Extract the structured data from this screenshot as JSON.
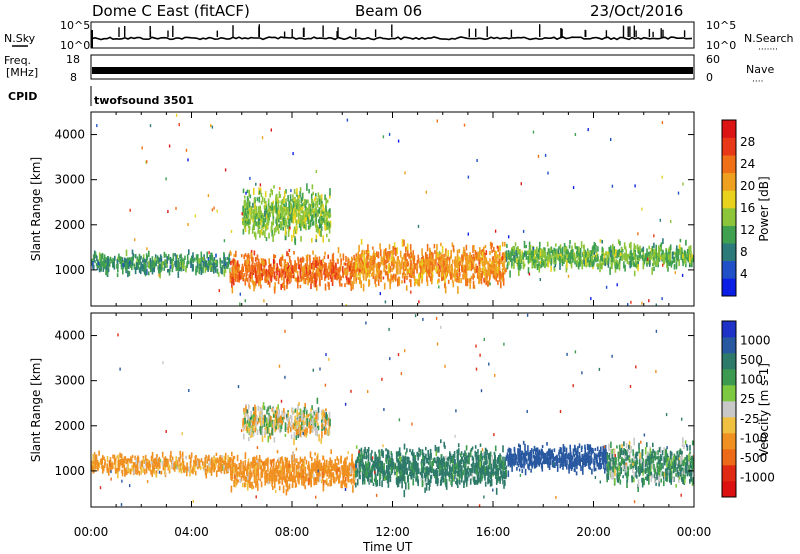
{
  "header": {
    "title": "Dome C East (fitACF)",
    "beam": "Beam 06",
    "date": "23/Oct/2016"
  },
  "strips": {
    "nsky_label": "N.Sky",
    "nsky_ticks": [
      "10^5",
      "10^0"
    ],
    "nsearch_label": "N.Search",
    "nsearch_dots": "·······",
    "nsearch_ticks": [
      "10^5",
      "10^0"
    ],
    "freq_label": "Freq.",
    "freq_unit": "[MHz]",
    "freq_ticks": [
      "18",
      "8"
    ],
    "nave_label": "Nave",
    "nave_dots": "····",
    "nave_ticks": [
      "60",
      "0"
    ],
    "cpid_label": "CPID",
    "cpid_value": "twofsound 3501"
  },
  "colors": {
    "power_scale": [
      "#0a1ee6",
      "#2050c8",
      "#2d7a7a",
      "#3fa050",
      "#8cc43a",
      "#e8d21e",
      "#f0a020",
      "#f07018",
      "#e83818",
      "#dc1414"
    ],
    "velocity_scale": [
      "#1e32c8",
      "#2858a0",
      "#2e7a6a",
      "#3c9a50",
      "#7cc840",
      "#c8c8c8",
      "#f0c040",
      "#f09020",
      "#ec6a18",
      "#e02a14",
      "#dc1010"
    ]
  },
  "chart_data": [
    {
      "type": "heatmap",
      "quantity": "Power",
      "ylabel": "Slant Range [km]",
      "ylim": [
        200,
        4500
      ],
      "yticks": [
        "1000",
        "2000",
        "3000",
        "4000"
      ],
      "colorbar_label": "Power [dB]",
      "colorbar_ticks": [
        "4",
        "8",
        "12",
        "16",
        "20",
        "24",
        "28"
      ],
      "colorbar_range": [
        0,
        32
      ],
      "xlim": [
        "00:00",
        "24:00"
      ],
      "scatter_bands": [
        {
          "x_start": 0.0,
          "x_end": 5.5,
          "range_center": 1200,
          "range_width": 300,
          "mean_value": 10
        },
        {
          "x_start": 5.5,
          "x_end": 10.5,
          "range_center": 1050,
          "range_width": 500,
          "mean_value": 24
        },
        {
          "x_start": 10.5,
          "x_end": 16.5,
          "range_center": 1150,
          "range_width": 600,
          "mean_value": 22
        },
        {
          "x_start": 16.5,
          "x_end": 24.0,
          "range_center": 1350,
          "range_width": 400,
          "mean_value": 13
        },
        {
          "x_start": 6.0,
          "x_end": 9.5,
          "range_center": 2300,
          "range_width": 700,
          "mean_value": 14
        }
      ]
    },
    {
      "type": "heatmap",
      "quantity": "Velocity",
      "ylabel": "Slant Range [km]",
      "ylim": [
        200,
        4500
      ],
      "yticks": [
        "1000",
        "2000",
        "3000",
        "4000"
      ],
      "xlabel": "Time UT",
      "xticks": [
        "00:00",
        "04:00",
        "08:00",
        "12:00",
        "16:00",
        "20:00",
        "00:00"
      ],
      "xlim": [
        "00:00",
        "24:00"
      ],
      "colorbar_label": "Velocity [m s-1]",
      "colorbar_ticks": [
        "1000",
        "500",
        "100",
        "25",
        "-25",
        "-100",
        "-500",
        "-1000"
      ],
      "scatter_bands": [
        {
          "x_start": 0.0,
          "x_end": 5.5,
          "range_center": 1200,
          "range_width": 300,
          "mean_value": -100
        },
        {
          "x_start": 5.5,
          "x_end": 10.5,
          "range_center": 1050,
          "range_width": 500,
          "mean_value": -150
        },
        {
          "x_start": 6.0,
          "x_end": 9.5,
          "range_center": 2150,
          "range_width": 500,
          "mean_value": 0
        },
        {
          "x_start": 10.5,
          "x_end": 16.5,
          "range_center": 1150,
          "range_width": 600,
          "mean_value": 150
        },
        {
          "x_start": 16.5,
          "x_end": 20.5,
          "range_center": 1350,
          "range_width": 400,
          "mean_value": 600
        },
        {
          "x_start": 20.5,
          "x_end": 24.0,
          "range_center": 1200,
          "range_width": 600,
          "mean_value": 80
        }
      ]
    }
  ]
}
